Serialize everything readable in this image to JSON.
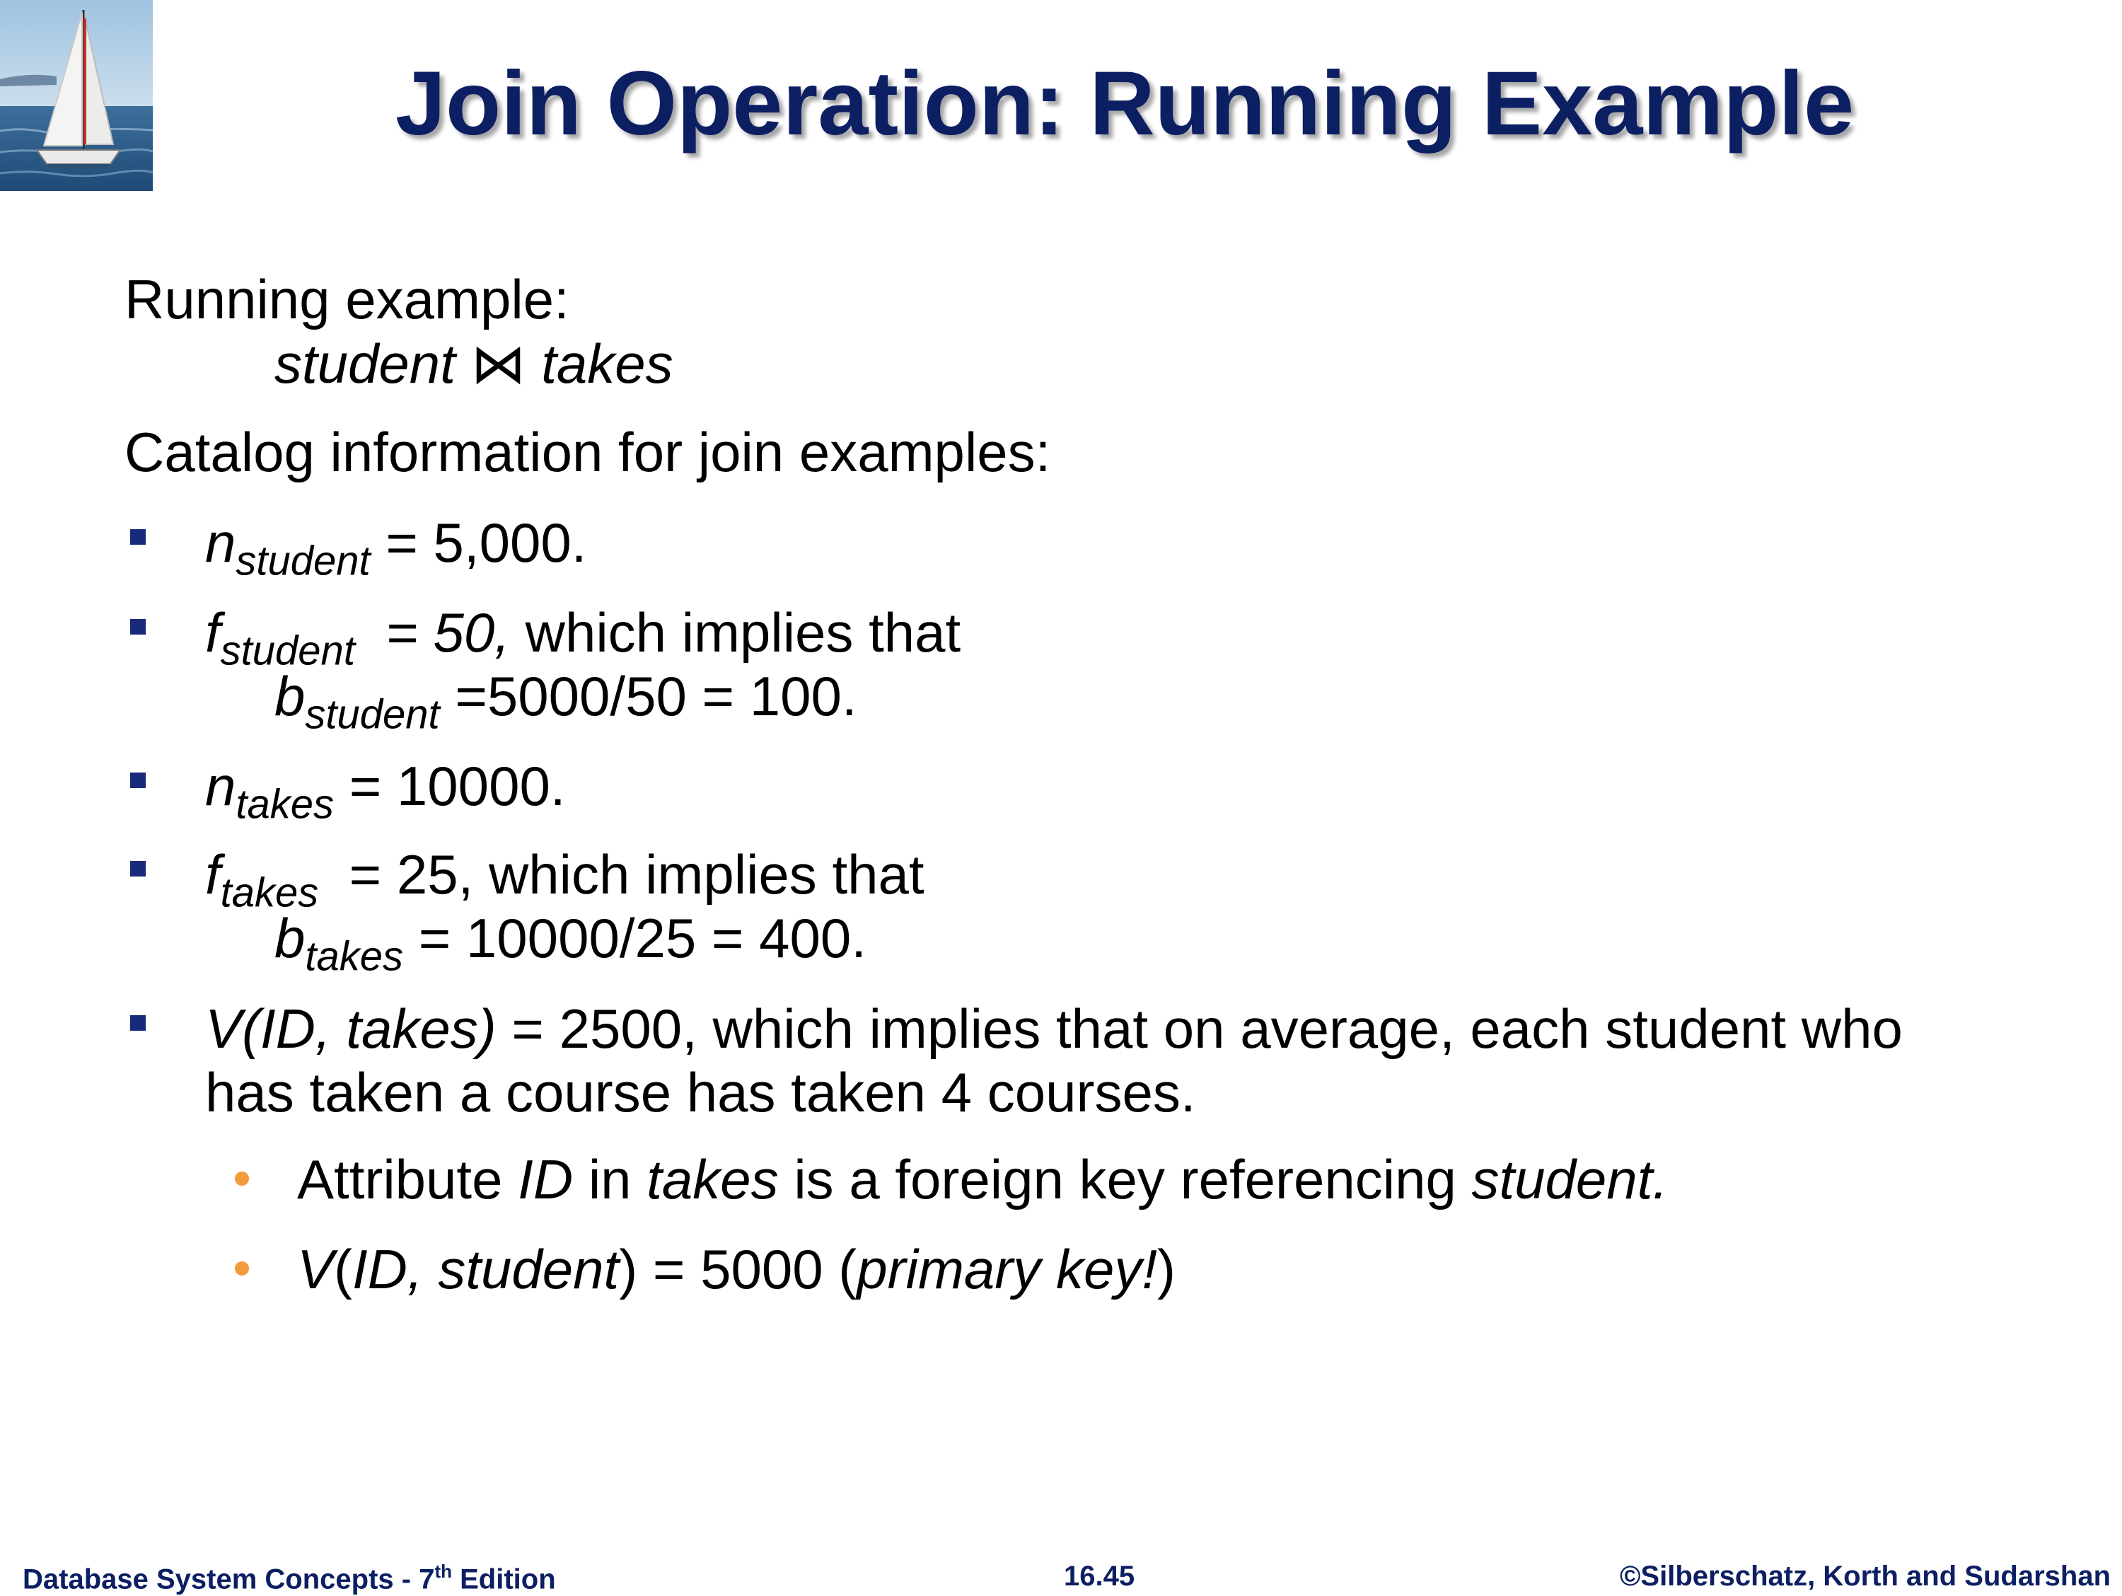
{
  "title": "Join Operation:  Running Example",
  "logo_icon": "sailboat-logo",
  "running_example": {
    "label": "Running example:",
    "expr_left": "student",
    "join_symbol": "⋈",
    "expr_right": "takes"
  },
  "catalog_label": "Catalog information for join examples:",
  "bullets": {
    "n_student": {
      "var": "n",
      "sub": "student",
      "text": " = 5,000."
    },
    "f_student": {
      "var": "f",
      "sub": "student",
      "eq": "  = 50,",
      "text": " which implies that",
      "b_var": "b",
      "b_sub": "student",
      "b_text": " =5000/50 = 100."
    },
    "n_takes": {
      "var": "n",
      "sub": "takes",
      "text": " = 10000."
    },
    "f_takes": {
      "var": "f",
      "sub": "takes",
      "text": "  = 25, which implies that",
      "b_var": "b",
      "b_sub": "takes",
      "b_text": " = 10000/25 = 400."
    },
    "v_takes": {
      "expr": "V(ID, takes)",
      "text": " = 2500, which implies that on average, each student who",
      "line2": "has taken a course has taken 4 courses."
    }
  },
  "sub_bullets": {
    "fk": {
      "t1": "Attribute ",
      "i1": "ID",
      "t2": " in ",
      "i2": "takes",
      "t3": " is a foreign key referencing ",
      "i3": "student."
    },
    "v_student": {
      "v": "V",
      "p1": "(",
      "expr": "ID, student",
      "p2": ") = 5000 (",
      "pk": "primary key!",
      "p3": ")"
    }
  },
  "footer": {
    "left": "Database System Concepts - 7",
    "left_sup": "th",
    "left_end": " Edition",
    "center": "16.45",
    "right": "©Silberschatz, Korth and Sudarshan"
  },
  "colors": {
    "title": "#0d1f63",
    "bullet_square": "#1a2a7a",
    "bullet_dot": "#f39a3c"
  }
}
